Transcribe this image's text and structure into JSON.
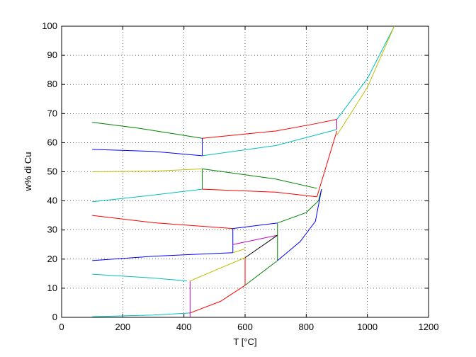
{
  "chart_data": {
    "type": "line",
    "xlabel": "T [°C]",
    "ylabel": "w% di Cu",
    "xlim": [
      0,
      1200
    ],
    "ylim": [
      0,
      100
    ],
    "xticks": [
      0,
      200,
      400,
      600,
      800,
      1000,
      1200
    ],
    "yticks": [
      0,
      10,
      20,
      30,
      40,
      50,
      60,
      70,
      80,
      90,
      100
    ],
    "grid": true,
    "series": [
      {
        "color": "#008000",
        "x": [
          100,
          250,
          460
        ],
        "values": [
          67,
          65,
          61.5
        ]
      },
      {
        "color": "#ff0000",
        "x": [
          460,
          700,
          830,
          900
        ],
        "values": [
          61.5,
          64,
          66.5,
          68
        ]
      },
      {
        "color": "#bf00bf",
        "x": [
          900,
          900
        ],
        "values": [
          68,
          64.5
        ]
      },
      {
        "color": "#0000ff",
        "x": [
          100,
          300,
          460
        ],
        "values": [
          57.7,
          57,
          55.5
        ]
      },
      {
        "color": "#0000ff",
        "x": [
          460,
          460
        ],
        "values": [
          61.5,
          55.5
        ]
      },
      {
        "color": "#00bfbf",
        "x": [
          460,
          700,
          900
        ],
        "values": [
          55.5,
          59,
          64.5
        ]
      },
      {
        "color": "#00bfbf",
        "x": [
          900,
          1000,
          1088
        ],
        "values": [
          68,
          82,
          100
        ]
      },
      {
        "color": "#bfbf00",
        "x": [
          100,
          300,
          460
        ],
        "values": [
          50,
          50.2,
          51
        ]
      },
      {
        "color": "#bfbf00",
        "x": [
          900,
          1000,
          1088
        ],
        "values": [
          62.5,
          79,
          100
        ]
      },
      {
        "color": "#008000",
        "x": [
          460,
          700,
          835
        ],
        "values": [
          51,
          47.5,
          44.3
        ]
      },
      {
        "color": "#008000",
        "x": [
          460,
          460
        ],
        "values": [
          51,
          44
        ]
      },
      {
        "color": "#00bfbf",
        "x": [
          100,
          300,
          460
        ],
        "values": [
          39.7,
          42,
          44
        ]
      },
      {
        "color": "#ff0000",
        "x": [
          460,
          700,
          835
        ],
        "values": [
          44,
          43,
          41.4
        ]
      },
      {
        "color": "#ff0000",
        "x": [
          835,
          900
        ],
        "values": [
          41.4,
          64
        ]
      },
      {
        "color": "#ff0000",
        "x": [
          100,
          300,
          560
        ],
        "values": [
          35,
          32.5,
          30.5
        ]
      },
      {
        "color": "#0000ff",
        "x": [
          560,
          706
        ],
        "values": [
          30.5,
          32.4
        ]
      },
      {
        "color": "#008000",
        "x": [
          706,
          800,
          840,
          850
        ],
        "values": [
          32.4,
          36,
          40,
          44
        ]
      },
      {
        "color": "#0000ff",
        "x": [
          560,
          560
        ],
        "values": [
          30.5,
          22.2
        ]
      },
      {
        "color": "#0000ff",
        "x": [
          100,
          300,
          560
        ],
        "values": [
          19.5,
          21,
          22.2
        ]
      },
      {
        "color": "#bf00bf",
        "x": [
          560,
          706
        ],
        "values": [
          25,
          28.2
        ]
      },
      {
        "color": "#bfbf00",
        "x": [
          560,
          600
        ],
        "values": [
          22.2,
          23.5
        ]
      },
      {
        "color": "#000000",
        "x": [
          600,
          706
        ],
        "values": [
          20.5,
          28.2
        ]
      },
      {
        "color": "#0000ff",
        "x": [
          706,
          780,
          830,
          850
        ],
        "values": [
          19.5,
          26,
          33,
          44
        ]
      },
      {
        "color": "#008000",
        "x": [
          600,
          706
        ],
        "values": [
          11,
          19.5
        ]
      },
      {
        "color": "#008000",
        "x": [
          706,
          706
        ],
        "values": [
          19.5,
          32.4
        ]
      },
      {
        "color": "#ff0000",
        "x": [
          420,
          520,
          600
        ],
        "values": [
          1.5,
          5.5,
          11
        ]
      },
      {
        "color": "#ff0000",
        "x": [
          600,
          600
        ],
        "values": [
          11,
          20.5
        ]
      },
      {
        "color": "#00bfbf",
        "x": [
          100,
          300,
          420
        ],
        "values": [
          0.2,
          0.8,
          1.5
        ]
      },
      {
        "color": "#bf00bf",
        "x": [
          420,
          420
        ],
        "values": [
          0,
          12.5
        ]
      },
      {
        "color": "#00bfbf",
        "x": [
          100,
          300,
          410
        ],
        "values": [
          14.8,
          13.5,
          12.5
        ]
      },
      {
        "color": "#bfbf00",
        "x": [
          420,
          600
        ],
        "values": [
          12.5,
          20.5
        ]
      }
    ]
  }
}
